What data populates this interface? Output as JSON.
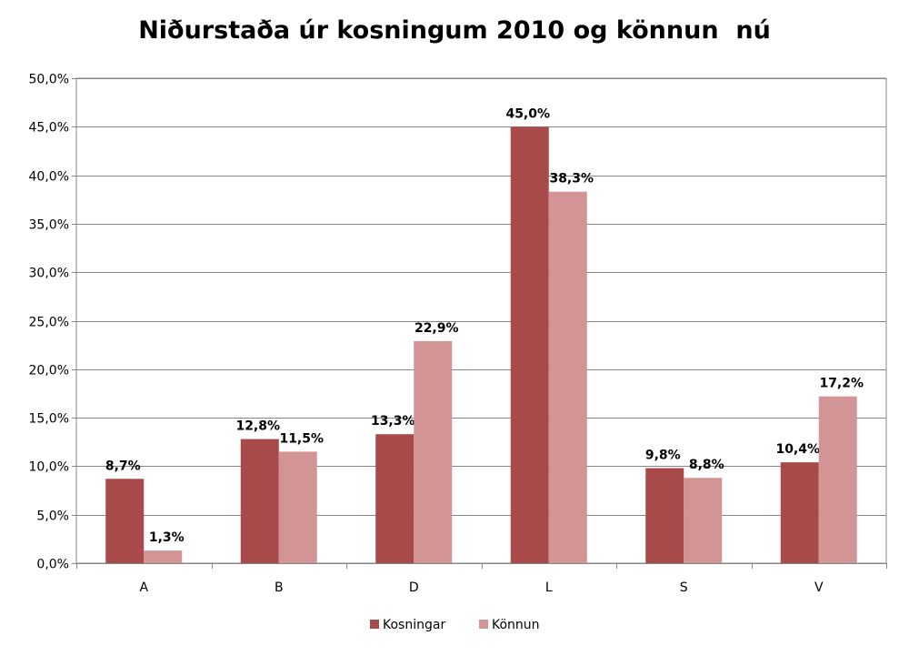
{
  "chart_data": {
    "type": "bar",
    "title": "Niðurstaða úr kosningum 2010 og könnun  nú",
    "categories": [
      "A",
      "B",
      "D",
      "L",
      "S",
      "V"
    ],
    "series": [
      {
        "name": "Kosningar",
        "values": [
          8.7,
          12.8,
          13.3,
          45.0,
          9.8,
          10.4
        ],
        "labels": [
          "8,7%",
          "12,8%",
          "13,3%",
          "45,0%",
          "9,8%",
          "10,4%"
        ],
        "color": "#A84A4A"
      },
      {
        "name": "Könnun",
        "values": [
          1.3,
          11.5,
          22.9,
          38.3,
          8.8,
          17.2
        ],
        "labels": [
          "1,3%",
          "11,5%",
          "22,9%",
          "38,3%",
          "8,8%",
          "17,2%"
        ],
        "color": "#D29494"
      }
    ],
    "ylim": [
      0,
      50
    ],
    "y_ticks": [
      0,
      5,
      10,
      15,
      20,
      25,
      30,
      35,
      40,
      45,
      50
    ],
    "y_tick_labels": [
      "0,0%",
      "5,0%",
      "10,0%",
      "15,0%",
      "20,0%",
      "25,0%",
      "30,0%",
      "35,0%",
      "40,0%",
      "45,0%",
      "50,0%"
    ],
    "grid": true,
    "legend_position": "bottom",
    "xlabel": "",
    "ylabel": ""
  }
}
